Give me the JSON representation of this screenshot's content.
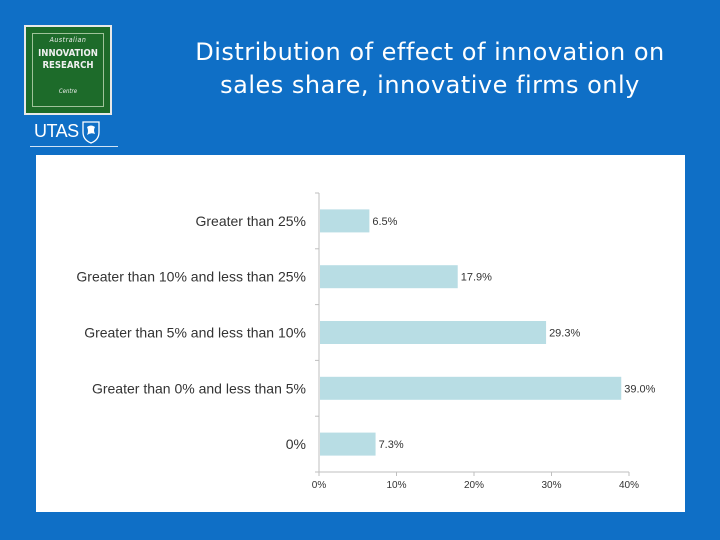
{
  "slide": {
    "title_line1": "Distribution of effect of innovation on",
    "title_line2": "sales share, innovative firms only",
    "logo": {
      "line1": "Australian",
      "line2": "INNOVATION",
      "line3": "RESEARCH",
      "line4": "Centre",
      "background": "#1d6b2a"
    },
    "university_mark": "UTAS",
    "background_color": "#0f6fc6"
  },
  "chart_data": {
    "type": "bar",
    "orientation": "horizontal",
    "categories": [
      "Greater than 25%",
      "Greater than 10% and less than 25%",
      "Greater than 5% and less than 10%",
      "Greater than 0% and less than 5%",
      "0%"
    ],
    "values": [
      6.5,
      17.9,
      29.3,
      39.0,
      7.3
    ],
    "value_labels": [
      "6.5%",
      "17.9%",
      "29.3%",
      "39.0%",
      "7.3%"
    ],
    "xlim": [
      0,
      40
    ],
    "x_ticks": [
      0,
      10,
      20,
      30,
      40
    ],
    "x_tick_labels": [
      "0%",
      "10%",
      "20%",
      "30%",
      "40%"
    ],
    "bar_color": "#b8dde4",
    "grid": false,
    "legend": "none"
  }
}
